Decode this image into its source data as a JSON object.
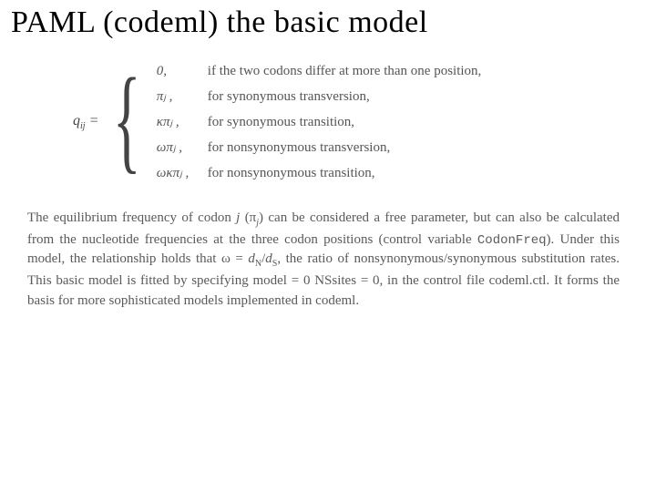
{
  "title": "PAML (codeml) the basic model",
  "equation": {
    "lhs": "q",
    "lhs_sub": "ij",
    "eq": " = ",
    "cases": [
      {
        "expr": "0,",
        "desc": "if the two codons differ at more than one position,"
      },
      {
        "expr": "πⱼ ,",
        "desc": "for synonymous transversion,"
      },
      {
        "expr": "κπⱼ ,",
        "desc": "for synonymous transition,"
      },
      {
        "expr": "ωπⱼ ,",
        "desc": "for nonsynonymous transversion,"
      },
      {
        "expr": "ωκπⱼ ,",
        "desc": "for nonsynonymous transition,"
      }
    ]
  },
  "paragraph": {
    "p1": "The equilibrium frequency of codon ",
    "p2": "j",
    "p3": " (π",
    "p4": "j",
    "p5": ") can be considered a free parameter, but can also be calculated from the nucleotide frequencies at the three codon positions (control variable ",
    "p6": "CodonFreq",
    "p7": "). Under this model, the relationship holds that ω = ",
    "p8": "d",
    "p9": "N",
    "p10": "/",
    "p11": "d",
    "p12": "S",
    "p13": ", the ratio of nonsynonymous/synonymous substitution rates. This basic model is fitted by specifying model = 0 NSsites = 0, in the control file codeml.ctl. It forms the basis for more sophisticated models implemented in codeml."
  },
  "colors": {
    "title": "#000000",
    "body": "#5a5a5a",
    "background": "#ffffff"
  },
  "fonts": {
    "title_size_pt": 26,
    "body_size_pt": 11,
    "family": "Times New Roman"
  }
}
